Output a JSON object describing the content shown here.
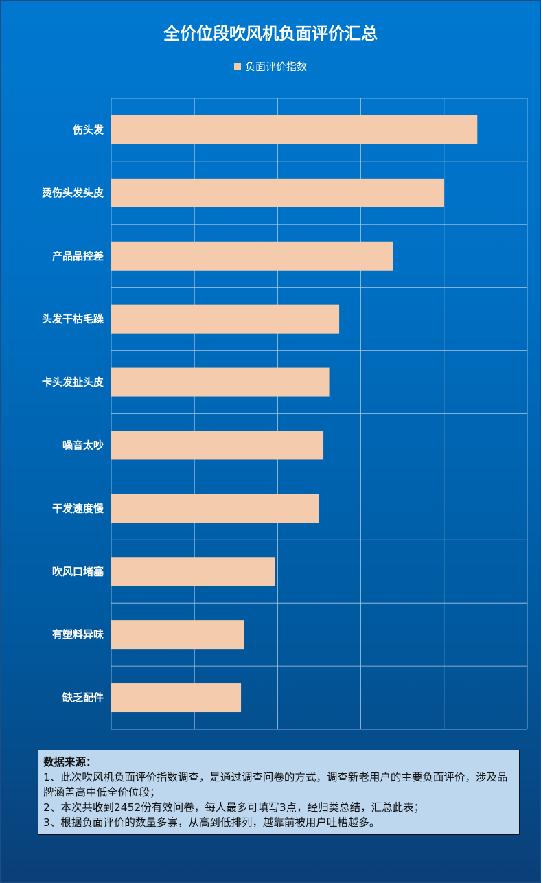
{
  "chart_data": {
    "type": "bar",
    "orientation": "horizontal",
    "title": "全价位段吹风机负面评价汇总",
    "legend": {
      "entries": [
        "负面评价指数"
      ],
      "position": "top"
    },
    "categories": [
      "伤头发",
      "烫伤头发头皮",
      "产品品控差",
      "头发干枯毛躁",
      "卡头发扯头皮",
      "噪音太吵",
      "干发速度慢",
      "吹风口堵塞",
      "有塑料异味",
      "缺乏配件"
    ],
    "series": [
      {
        "name": "负面评价指数",
        "values": [
          4.4,
          4.0,
          3.39,
          2.74,
          2.62,
          2.55,
          2.5,
          1.97,
          1.6,
          1.56
        ]
      }
    ],
    "xlim": [
      0,
      5
    ],
    "x_tick_labels_shown": false,
    "grid": true,
    "colors": {
      "bar": "#f5cbad",
      "grid": "#a9c8e6",
      "background": "#0070c4"
    }
  },
  "note": {
    "heading": "数据来源：",
    "lines": [
      "1、此次吹风机负面评价指数调查，是通过调查问卷的方式，调查新老用户的主要负面评价，涉及品牌涵盖高中低全价位段；",
      "2、本次共收到2452份有效问卷，每人最多可填写3点，经归类总结，汇总此表；",
      "3、根据负面评价的数量多寡，从高到低排列，越靠前被用户吐槽越多。"
    ]
  }
}
